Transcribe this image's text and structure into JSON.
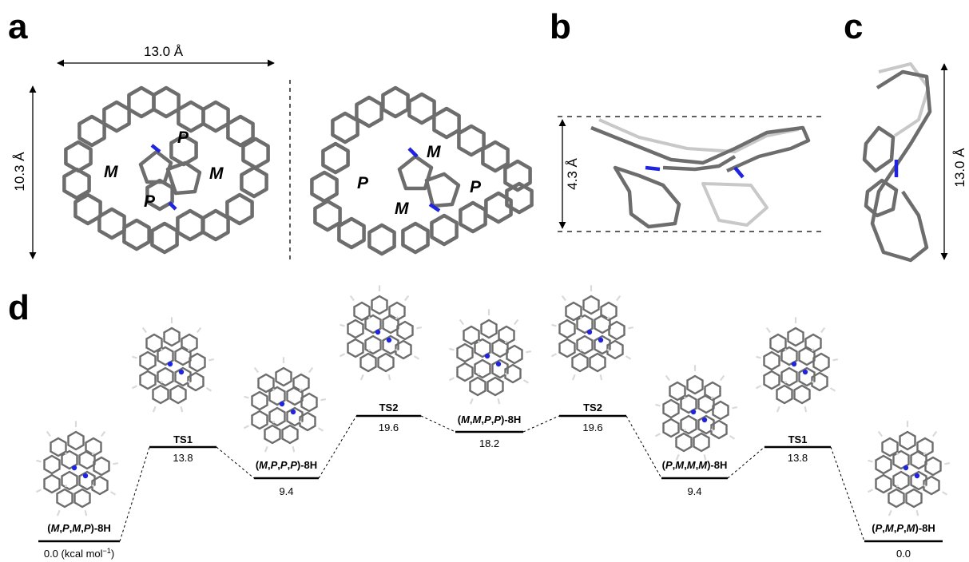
{
  "panels": {
    "a": "a",
    "b": "b",
    "c": "c",
    "d": "d"
  },
  "dimensions": {
    "a_width": "13.0 Å",
    "a_height": "10.3 Å",
    "b_height": "4.3 Å",
    "c_height": "13.0 Å"
  },
  "helicity": {
    "left": [
      "P",
      "M",
      "M",
      "P"
    ],
    "right": [
      "M",
      "P",
      "P",
      "M"
    ]
  },
  "energy_levels": [
    {
      "label_parts": [
        [
          "(",
          false
        ],
        [
          "M",
          true
        ],
        [
          ",",
          false
        ],
        [
          "P",
          true
        ],
        [
          ",",
          false
        ],
        [
          "M",
          true
        ],
        [
          ",",
          false
        ],
        [
          "P",
          true
        ],
        [
          ")-8H",
          false
        ]
      ],
      "value": "0.0 (kcal mol",
      "value_sup": "−1",
      "value_tail": ")"
    },
    {
      "label": "TS1",
      "value": "13.8"
    },
    {
      "label_parts": [
        [
          "(",
          false
        ],
        [
          "M",
          true
        ],
        [
          ",",
          false
        ],
        [
          "P",
          true
        ],
        [
          ",",
          false
        ],
        [
          "P",
          true
        ],
        [
          ",",
          false
        ],
        [
          "P",
          true
        ],
        [
          ")-8H",
          false
        ]
      ],
      "value": "9.4"
    },
    {
      "label": "TS2",
      "value": "19.6"
    },
    {
      "label_parts": [
        [
          "(",
          false
        ],
        [
          "M",
          true
        ],
        [
          ",",
          false
        ],
        [
          "M",
          true
        ],
        [
          ",",
          false
        ],
        [
          "P",
          true
        ],
        [
          ",",
          false
        ],
        [
          "P",
          true
        ],
        [
          ")-8H",
          false
        ]
      ],
      "value": "18.2"
    },
    {
      "label": "TS2",
      "value": "19.6"
    },
    {
      "label_parts": [
        [
          "(",
          false
        ],
        [
          "P",
          true
        ],
        [
          ",",
          false
        ],
        [
          "M",
          true
        ],
        [
          ",",
          false
        ],
        [
          "M",
          true
        ],
        [
          ",",
          false
        ],
        [
          "M",
          true
        ],
        [
          ")-8H",
          false
        ]
      ],
      "value": "9.4"
    },
    {
      "label": "TS1",
      "value": "13.8"
    },
    {
      "label_parts": [
        [
          "(",
          false
        ],
        [
          "P",
          true
        ],
        [
          ",",
          false
        ],
        [
          "M",
          true
        ],
        [
          ",",
          false
        ],
        [
          "P",
          true
        ],
        [
          ",",
          false
        ],
        [
          "M",
          true
        ],
        [
          ")-8H",
          false
        ]
      ],
      "value": "0.0"
    }
  ],
  "colors": {
    "carbon": "#6d6d6d",
    "nitrogen": "#1f24e0",
    "hydrogen": "#d9d9d9"
  }
}
